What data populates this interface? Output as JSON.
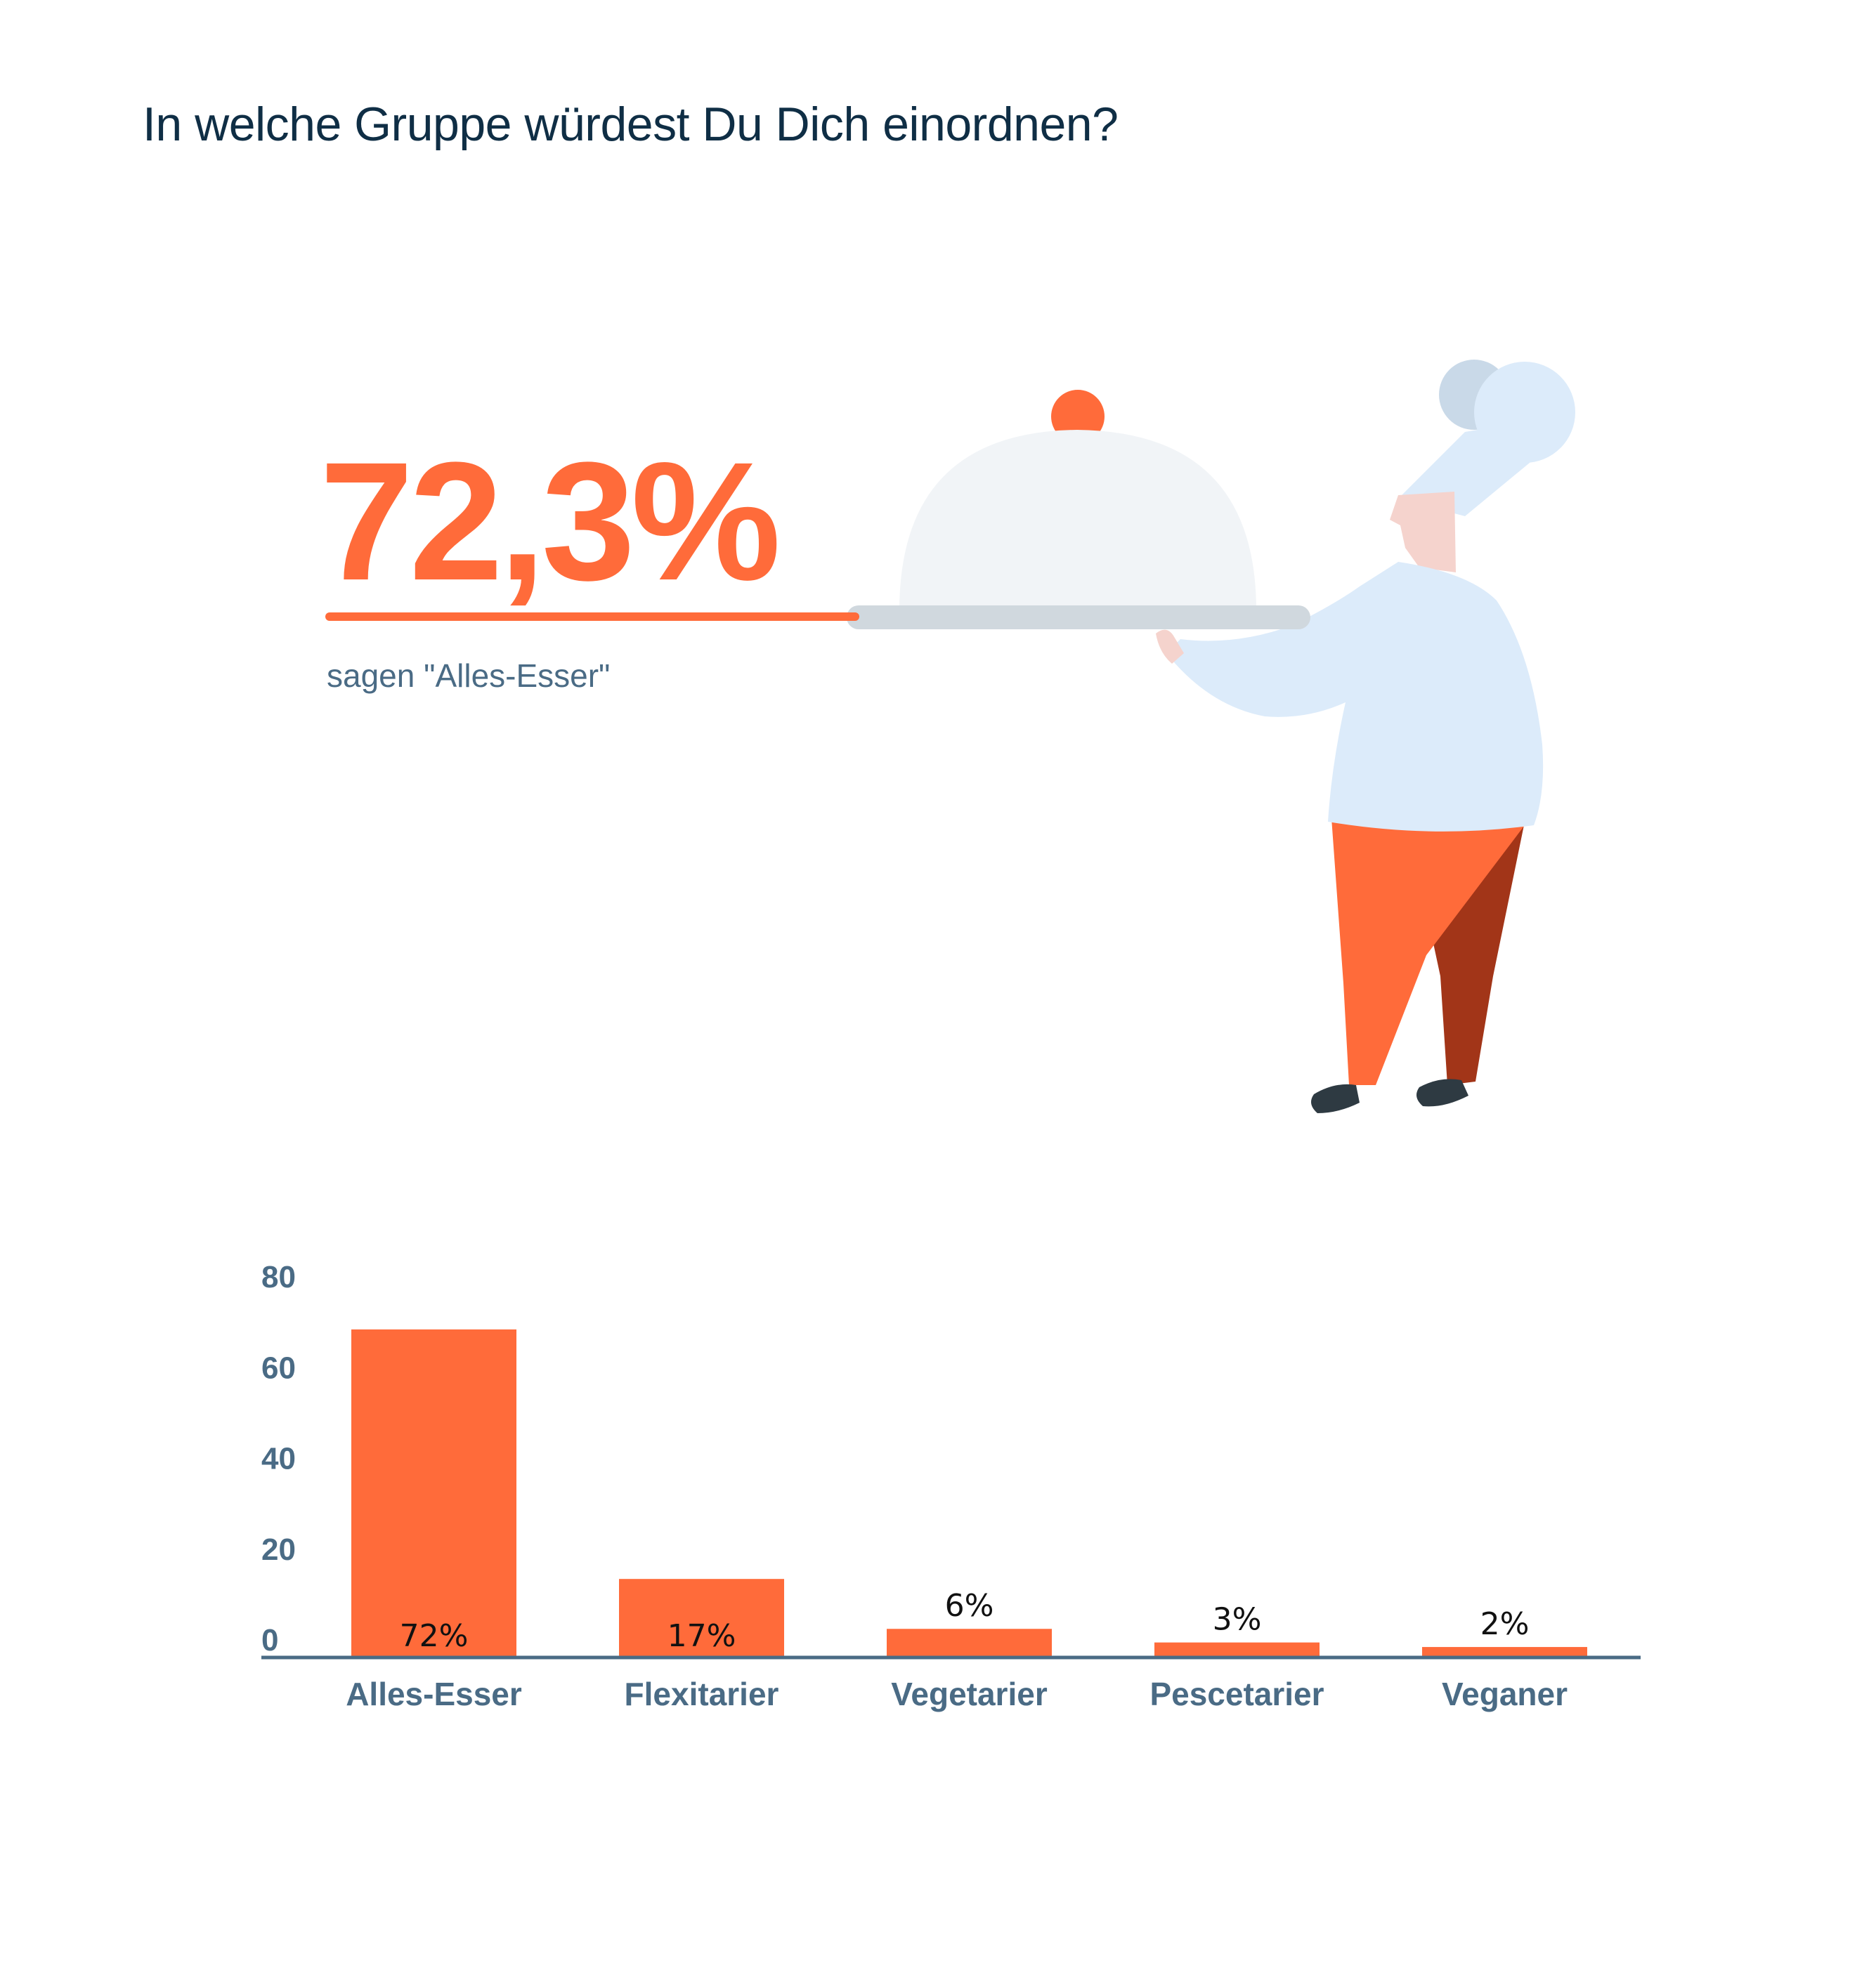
{
  "header": {
    "title": "In welche Gruppe würdest Du Dich einordnen?"
  },
  "highlight": {
    "value": "72,3%",
    "caption": "sagen \"Alles-Esser\""
  },
  "colors": {
    "accent": "#ff6b3a",
    "text_dark": "#0f2e45",
    "text_muted": "#4a6b85",
    "axis": "#4a6b85",
    "dome": "#f1f4f7",
    "tray": "#d0d8de",
    "chef_coat": "#dcebfa",
    "trouser_shadow": "#a23518"
  },
  "illustration": {
    "icon": "chef-with-cloche-illustration"
  },
  "chart_data": {
    "type": "bar",
    "title": "",
    "xlabel": "",
    "ylabel": "",
    "categories": [
      "Alles-Esser",
      "Flexitarier",
      "Vegetarier",
      "Pescetarier",
      "Veganer"
    ],
    "values": [
      72,
      17,
      6,
      3,
      2
    ],
    "data_labels": [
      "72%",
      "17%",
      "6%",
      "3%",
      "2%"
    ],
    "yticks": [
      0,
      20,
      40,
      60,
      80
    ],
    "ylim": [
      0,
      80
    ],
    "grid": false,
    "legend": "none"
  }
}
